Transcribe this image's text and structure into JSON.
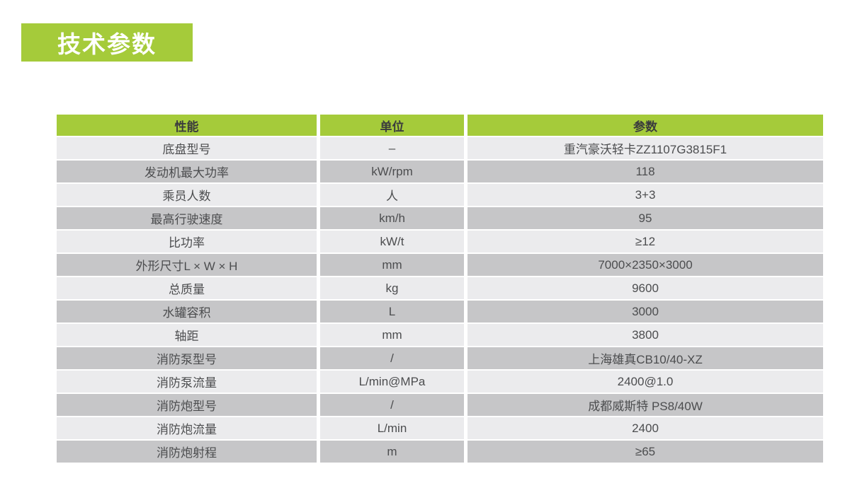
{
  "page": {
    "title": "技术参数"
  },
  "colors": {
    "green": "#a5cb3a",
    "row_light": "#ebebed",
    "row_dark": "#c6c6c8",
    "header_text": "#3a3b3d",
    "body_text": "#4c4d4f",
    "title_text": "#ffffff"
  },
  "table": {
    "headers": [
      "性能",
      "单位",
      "参数"
    ],
    "rows": [
      [
        "底盘型号",
        "–",
        "重汽豪沃轻卡ZZ1107G3815F1"
      ],
      [
        "发动机最大功率",
        "kW/rpm",
        "118"
      ],
      [
        "乘员人数",
        "人",
        "3+3"
      ],
      [
        "最高行驶速度",
        "km/h",
        "95"
      ],
      [
        "比功率",
        "kW/t",
        "≥12"
      ],
      [
        "外形尺寸L × W × H",
        "mm",
        "7000×2350×3000"
      ],
      [
        "总质量",
        "kg",
        "9600"
      ],
      [
        "水罐容积",
        "L",
        "3000"
      ],
      [
        "轴距",
        "mm",
        "3800"
      ],
      [
        "消防泵型号",
        "/",
        "上海雄真CB10/40-XZ"
      ],
      [
        "消防泵流量",
        "L/min@MPa",
        "2400@1.0"
      ],
      [
        "消防炮型号",
        "/",
        "成都威斯特 PS8/40W"
      ],
      [
        "消防炮流量",
        "L/min",
        "2400"
      ],
      [
        "消防炮射程",
        "m",
        "≥65"
      ]
    ]
  }
}
